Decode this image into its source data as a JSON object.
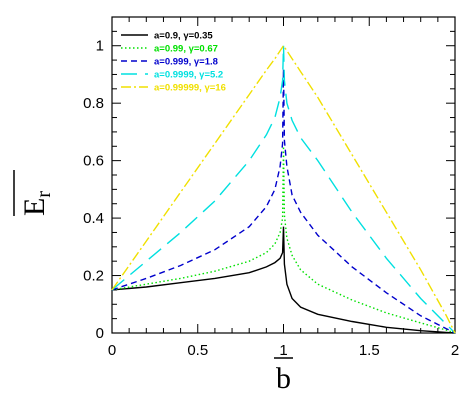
{
  "chart_data": {
    "type": "line",
    "title": "",
    "xlabel": "b",
    "ylabel_main": "E",
    "ylabel_sub": "r",
    "xlim": [
      0,
      2
    ],
    "ylim": [
      0,
      1.1
    ],
    "x_ticks": [
      0,
      0.5,
      1,
      1.5,
      2
    ],
    "x_tick_labels": [
      "0",
      "0.5",
      "1",
      "1.5",
      "2"
    ],
    "y_ticks": [
      0,
      0.2,
      0.4,
      0.6,
      0.8,
      1
    ],
    "y_tick_labels": [
      "0",
      "0.2",
      "0.4",
      "0.6",
      "0.8",
      "1"
    ],
    "grid": false,
    "legend_position": "top-left",
    "series": [
      {
        "name": "a=0.9, γ=0.35",
        "color": "#000000",
        "dash": "solid",
        "x": [
          0,
          0.2,
          0.4,
          0.6,
          0.8,
          0.9,
          0.95,
          0.98,
          0.995,
          1.0,
          1.005,
          1.02,
          1.05,
          1.1,
          1.2,
          1.4,
          1.6,
          1.8,
          1.95,
          2.0
        ],
        "y": [
          0.15,
          0.16,
          0.175,
          0.19,
          0.21,
          0.23,
          0.245,
          0.26,
          0.28,
          0.37,
          0.24,
          0.17,
          0.12,
          0.09,
          0.065,
          0.04,
          0.02,
          0.008,
          0.002,
          0
        ]
      },
      {
        "name": "a=0.99, γ=0.67",
        "color": "#00e000",
        "dash": "dotted",
        "x": [
          0,
          0.2,
          0.4,
          0.6,
          0.8,
          0.9,
          0.95,
          0.98,
          0.995,
          1.0,
          1.005,
          1.02,
          1.05,
          1.1,
          1.2,
          1.4,
          1.6,
          1.8,
          1.95,
          2.0
        ],
        "y": [
          0.15,
          0.17,
          0.19,
          0.215,
          0.25,
          0.28,
          0.31,
          0.35,
          0.4,
          0.65,
          0.41,
          0.33,
          0.27,
          0.22,
          0.17,
          0.115,
          0.07,
          0.035,
          0.01,
          0
        ]
      },
      {
        "name": "a=0.999, γ=1.8",
        "color": "#0000cc",
        "dash": "short-dash",
        "x": [
          0,
          0.2,
          0.4,
          0.6,
          0.8,
          0.9,
          0.95,
          0.98,
          0.995,
          1.0,
          1.005,
          1.02,
          1.05,
          1.1,
          1.2,
          1.4,
          1.6,
          1.8,
          1.95,
          2.0
        ],
        "y": [
          0.15,
          0.19,
          0.235,
          0.29,
          0.37,
          0.44,
          0.5,
          0.58,
          0.66,
          0.92,
          0.67,
          0.58,
          0.48,
          0.42,
          0.34,
          0.23,
          0.14,
          0.06,
          0.015,
          0
        ]
      },
      {
        "name": "a=0.9999, γ=5.2",
        "color": "#00e0e0",
        "dash": "long-dash",
        "x": [
          0,
          0.2,
          0.4,
          0.6,
          0.8,
          0.9,
          0.95,
          0.98,
          0.995,
          1.0,
          1.005,
          1.02,
          1.05,
          1.1,
          1.2,
          1.4,
          1.6,
          1.8,
          1.95,
          2.0
        ],
        "y": [
          0.15,
          0.25,
          0.35,
          0.46,
          0.6,
          0.69,
          0.75,
          0.82,
          0.88,
          1.0,
          0.88,
          0.8,
          0.74,
          0.68,
          0.6,
          0.42,
          0.26,
          0.12,
          0.03,
          0
        ]
      },
      {
        "name": "a=0.99999, γ=16",
        "color": "#f0e000",
        "dash": "dash-dot",
        "x": [
          0,
          0.2,
          0.4,
          0.6,
          0.8,
          0.9,
          0.95,
          1.0,
          1.05,
          1.1,
          1.2,
          1.4,
          1.6,
          1.8,
          1.95,
          2.0
        ],
        "y": [
          0.15,
          0.32,
          0.49,
          0.66,
          0.83,
          0.915,
          0.955,
          1.0,
          0.955,
          0.91,
          0.82,
          0.62,
          0.42,
          0.22,
          0.06,
          0
        ]
      }
    ]
  }
}
